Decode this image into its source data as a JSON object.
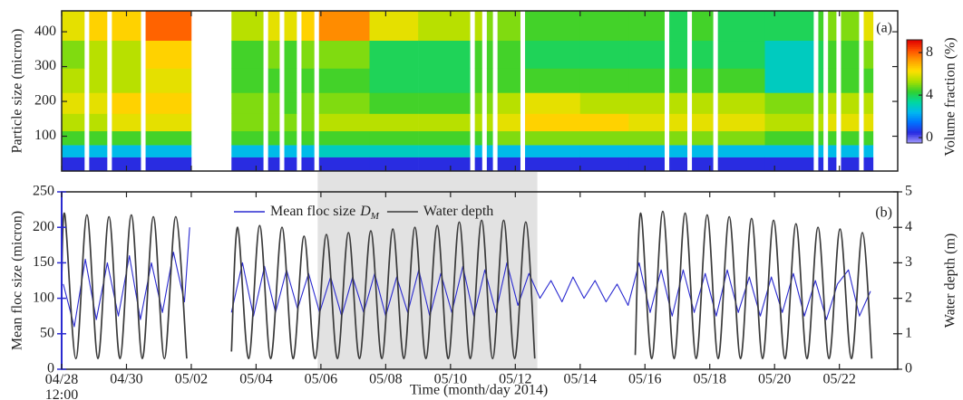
{
  "chart_data": [
    {
      "type": "heatmap",
      "ylabel": "Particle size (micron)",
      "zlabel": "Volume fraction (%)",
      "label": "(a)",
      "xlim": [
        0,
        25.8
      ],
      "xticks": [
        0,
        2,
        4,
        6,
        8,
        10,
        12,
        14,
        16,
        18,
        20,
        22,
        24
      ],
      "ylim": [
        0,
        460
      ],
      "yticks": [
        100,
        200,
        300,
        400
      ],
      "clim": [
        -0.5,
        9.2
      ],
      "zticks": [
        0,
        4,
        8
      ],
      "colormap": [
        "#a8a0ff",
        "#2a2ae0",
        "#0070ff",
        "#00b8f0",
        "#00d8a0",
        "#30d030",
        "#a8e000",
        "#ffe000",
        "#ffa000",
        "#ff5000",
        "#e00000"
      ],
      "x_edges": [
        0,
        0.7,
        0.85,
        1.4,
        1.55,
        2.44,
        2.59,
        4.0,
        5.24,
        6.22,
        6.37,
        6.72,
        6.87,
        7.25,
        7.4,
        7.79,
        7.94,
        9.5,
        11,
        12.6,
        12.75,
        12.97,
        13.12,
        13.3,
        13.45,
        14.15,
        14.3,
        16,
        17.5,
        18.6,
        18.75,
        19.3,
        19.45,
        20.1,
        20.25,
        21.7,
        23.2,
        23.35,
        23.5,
        23.65,
        23.9,
        24.05,
        24.6,
        24.75,
        25.04
      ],
      "y_edges": [
        0,
        40,
        75,
        115,
        165,
        225,
        295,
        375,
        460
      ],
      "z": [
        [
          0.5,
          2.5,
          4.5,
          5.5,
          6,
          5.5,
          5,
          6
        ],
        null,
        [
          0.5,
          2.5,
          4.5,
          5.5,
          6,
          5.5,
          5.5,
          6.5
        ],
        null,
        [
          0.5,
          2.5,
          4.5,
          6,
          6.5,
          5.5,
          5.5,
          6.5
        ],
        null,
        [
          0.5,
          2.5,
          4.5,
          6,
          6.5,
          6,
          6.5,
          8
        ],
        null,
        [
          0.5,
          2.5,
          4.5,
          5,
          5,
          4.5,
          4.5,
          5.5
        ],
        null,
        [
          0.5,
          2.5,
          4.5,
          5,
          5,
          4.5,
          5,
          6
        ],
        null,
        [
          0.5,
          2.5,
          4.5,
          5,
          4.5,
          4.5,
          4.5,
          6
        ],
        null,
        [
          0.5,
          2.5,
          4.5,
          5,
          5,
          4.5,
          5,
          6.5
        ],
        null,
        [
          0.5,
          3,
          4.5,
          5.5,
          5,
          4.5,
          5,
          7.5
        ],
        [
          0.5,
          3,
          4.5,
          5.5,
          4.5,
          4,
          4,
          6
        ],
        [
          0.5,
          3,
          4.5,
          5.5,
          4.5,
          4,
          4,
          5.5
        ],
        null,
        [
          0.5,
          2.5,
          4.5,
          5.5,
          5,
          4.5,
          4.5,
          5.5
        ],
        null,
        [
          0.5,
          2.5,
          4.5,
          5.5,
          5,
          4.5,
          4.5,
          5
        ],
        null,
        [
          0.5,
          2.5,
          5,
          6,
          5.5,
          4.5,
          4.5,
          5
        ],
        null,
        [
          0.5,
          2.5,
          5,
          6.5,
          6,
          4.5,
          4,
          4.5
        ],
        [
          0.5,
          2.5,
          5,
          6.5,
          5.5,
          4.5,
          4,
          4.5
        ],
        [
          0.5,
          2.5,
          5,
          6,
          5.5,
          4.5,
          4,
          4.5
        ],
        null,
        [
          0.5,
          2.5,
          5,
          6,
          5.5,
          4.5,
          4,
          4
        ],
        null,
        [
          0.5,
          2.5,
          5,
          6,
          5.5,
          4.5,
          4,
          4.5
        ],
        null,
        [
          0.5,
          2.5,
          5,
          6,
          5.5,
          4.5,
          4,
          4
        ],
        [
          0.5,
          2.5,
          4.5,
          5.5,
          5,
          3,
          3,
          4
        ],
        null,
        [
          0.5,
          2.5,
          4.5,
          5.5,
          5,
          4,
          4,
          4.5
        ],
        null,
        [
          0.5,
          2.5,
          4.5,
          6,
          5.5,
          4.5,
          4.5,
          5
        ],
        null,
        [
          0.5,
          2.5,
          4.5,
          6,
          5.5,
          4.5,
          4.5,
          5
        ],
        null,
        [
          0.5,
          2.5,
          4.5,
          6,
          5.5,
          4.5,
          5,
          6
        ]
      ]
    },
    {
      "type": "line",
      "xlabel": "Time (month/day 2014)",
      "ylabel": "Mean floc size (micron)",
      "y2label": "Water depth (m)",
      "label": "(b)",
      "legend": "upper center",
      "highlight": [
        7.9,
        14.68
      ],
      "highlight_color": "#e2e2e2",
      "xlim": [
        0,
        25.8
      ],
      "xticks": [
        {
          "value": 0,
          "label": "04/28\n12:00"
        },
        {
          "value": 2,
          "label": "04/30"
        },
        {
          "value": 4,
          "label": "05/02"
        },
        {
          "value": 6,
          "label": "05/04"
        },
        {
          "value": 8,
          "label": "05/06"
        },
        {
          "value": 10,
          "label": "05/08"
        },
        {
          "value": 12,
          "label": "05/10"
        },
        {
          "value": 14,
          "label": "05/12"
        },
        {
          "value": 16,
          "label": "05/14"
        },
        {
          "value": 18,
          "label": "05/16"
        },
        {
          "value": 20,
          "label": "05/18"
        },
        {
          "value": 22,
          "label": "05/20"
        },
        {
          "value": 24,
          "label": "05/22"
        }
      ],
      "ylim": [
        0,
        250
      ],
      "yticks": [
        0,
        50,
        100,
        150,
        200,
        250
      ],
      "y2lim": [
        0,
        5
      ],
      "y2ticks": [
        0,
        1,
        2,
        3,
        4,
        5
      ],
      "series": [
        {
          "name": "Mean floc size",
          "name_symbol": "D",
          "name_subscript": "M",
          "color": "#2a2ad0",
          "axis": "y",
          "smooth": false,
          "x": [
            0.05,
            0.39,
            0.73,
            1.07,
            1.41,
            1.75,
            2.09,
            2.43,
            2.77,
            3.11,
            3.45,
            3.79,
            3.95,
            4.5,
            5.24,
            5.58,
            5.92,
            6.26,
            6.6,
            6.94,
            7.28,
            7.62,
            7.96,
            8.3,
            8.64,
            8.98,
            9.32,
            9.66,
            10,
            10.34,
            10.68,
            11.02,
            11.36,
            11.7,
            12.04,
            12.38,
            12.72,
            13.06,
            13.4,
            13.74,
            14.08,
            14.42,
            14.76,
            15.1,
            15.44,
            15.78,
            16.12,
            16.46,
            16.8,
            17.14,
            17.48,
            17.82,
            18.16,
            18.5,
            18.84,
            19.18,
            19.52,
            19.86,
            20.2,
            20.54,
            20.88,
            21.22,
            21.56,
            21.9,
            22.24,
            22.58,
            22.92,
            23.26,
            23.6,
            23.94,
            24.28,
            24.62,
            24.96
          ],
          "values": [
            120,
            60,
            155,
            70,
            150,
            75,
            160,
            70,
            150,
            80,
            165,
            95,
            200,
            null,
            80,
            150,
            75,
            145,
            80,
            140,
            85,
            135,
            80,
            130,
            75,
            130,
            80,
            135,
            75,
            130,
            80,
            140,
            75,
            135,
            80,
            145,
            75,
            140,
            80,
            150,
            90,
            135,
            100,
            125,
            95,
            130,
            100,
            125,
            95,
            120,
            90,
            150,
            80,
            140,
            75,
            140,
            80,
            135,
            75,
            140,
            80,
            130,
            75,
            130,
            80,
            135,
            75,
            125,
            70,
            120,
            140,
            75,
            110
          ]
        },
        {
          "name": "Water depth",
          "color": "#3a3a3a",
          "axis": "y2",
          "smooth": true,
          "x": [
            0,
            0.1,
            0.44,
            0.78,
            1.12,
            1.46,
            1.8,
            2.15,
            2.49,
            2.83,
            3.17,
            3.52,
            3.86,
            4.6,
            5.24,
            5.43,
            5.77,
            6.11,
            6.45,
            6.8,
            7.14,
            7.48,
            7.82,
            8.17,
            8.51,
            8.85,
            9.19,
            9.54,
            9.88,
            10.22,
            10.56,
            10.9,
            11.24,
            11.59,
            11.93,
            12.27,
            12.61,
            12.96,
            13.3,
            13.64,
            13.98,
            14.32,
            14.6,
            16,
            17.7,
            17.87,
            18.21,
            18.55,
            18.9,
            19.24,
            19.58,
            19.92,
            20.26,
            20.6,
            20.95,
            21.29,
            21.63,
            21.97,
            22.32,
            22.66,
            23,
            23.34,
            23.68,
            24.02,
            24.37,
            24.71,
            25.0
          ],
          "values": [
            2.6,
            4.35,
            0.3,
            4.35,
            0.3,
            4.3,
            0.3,
            4.35,
            0.3,
            4.3,
            0.3,
            4.3,
            0.3,
            null,
            0.5,
            4.0,
            0.3,
            4.05,
            0.3,
            4.0,
            0.3,
            3.75,
            0.3,
            3.8,
            0.3,
            3.85,
            0.3,
            3.9,
            0.3,
            3.95,
            0.3,
            4.0,
            0.3,
            4.05,
            0.3,
            4.15,
            0.3,
            4.2,
            0.3,
            4.2,
            0.3,
            4.15,
            0.3,
            null,
            0.4,
            4.4,
            0.3,
            4.45,
            0.3,
            4.4,
            0.3,
            4.35,
            0.3,
            4.3,
            0.3,
            4.25,
            0.3,
            4.2,
            0.3,
            4.1,
            0.3,
            4.0,
            0.3,
            3.95,
            0.3,
            3.85,
            0.3
          ]
        }
      ]
    }
  ]
}
